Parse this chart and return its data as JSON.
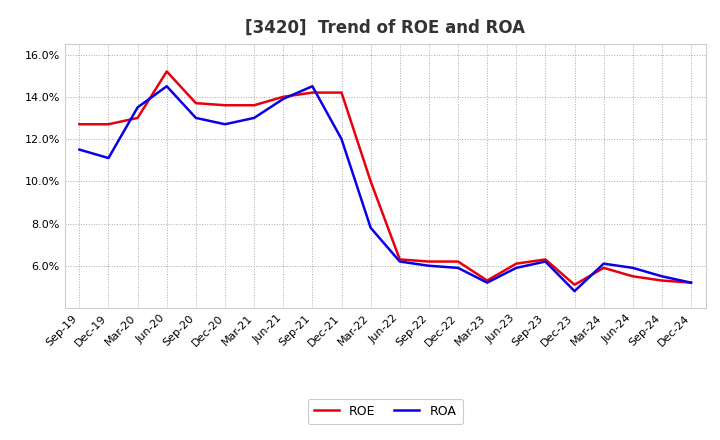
{
  "title": "[3420]  Trend of ROE and ROA",
  "x_labels": [
    "Sep-19",
    "Dec-19",
    "Mar-20",
    "Jun-20",
    "Sep-20",
    "Dec-20",
    "Mar-21",
    "Jun-21",
    "Sep-21",
    "Dec-21",
    "Mar-22",
    "Jun-22",
    "Sep-22",
    "Dec-22",
    "Mar-23",
    "Jun-23",
    "Sep-23",
    "Dec-23",
    "Mar-24",
    "Jun-24",
    "Sep-24",
    "Dec-24"
  ],
  "roe": [
    12.7,
    12.7,
    13.0,
    15.2,
    13.7,
    13.6,
    13.6,
    14.0,
    14.2,
    14.2,
    10.0,
    6.3,
    6.2,
    6.2,
    5.3,
    6.1,
    6.3,
    5.1,
    5.9,
    5.5,
    5.3,
    5.2
  ],
  "roa": [
    11.5,
    11.1,
    13.5,
    14.5,
    13.0,
    12.7,
    13.0,
    13.9,
    14.5,
    12.0,
    7.8,
    6.2,
    6.0,
    5.9,
    5.2,
    5.9,
    6.2,
    4.8,
    6.1,
    5.9,
    5.5,
    5.2
  ],
  "roe_color": "#e8000d",
  "roa_color": "#0a00e8",
  "background_color": "#ffffff",
  "plot_bg_color": "#ffffff",
  "grid_color": "#aaaaaa",
  "ylim": [
    4.0,
    16.5
  ],
  "yticks": [
    6.0,
    8.0,
    10.0,
    12.0,
    14.0,
    16.0
  ],
  "line_width": 1.8,
  "title_fontsize": 12,
  "tick_fontsize": 8,
  "legend_fontsize": 9
}
